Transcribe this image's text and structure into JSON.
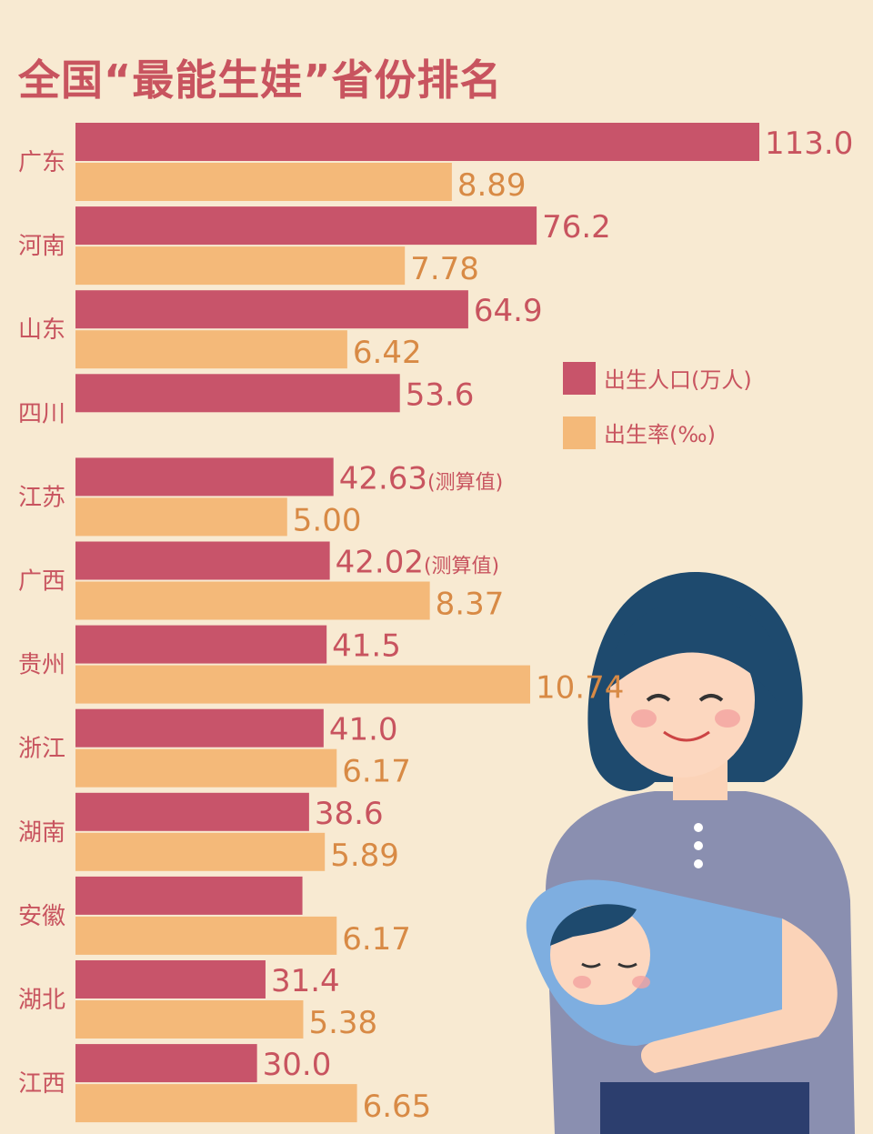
{
  "title": "全国“最能生娃”省份排名",
  "colors": {
    "background": "#f8ead2",
    "births": "#c8546a",
    "rate": "#f4b979",
    "label": "#c8545f",
    "rate_label": "#d88a45"
  },
  "legend": [
    {
      "label": "出生人口(万人)",
      "color": "#c8546a"
    },
    {
      "label": "出生率(‰)",
      "color": "#f4b979"
    }
  ],
  "chart_data": {
    "type": "bar",
    "orientation": "horizontal",
    "categories": [
      "广东",
      "河南",
      "山东",
      "四川",
      "江苏",
      "广西",
      "贵州",
      "浙江",
      "湖南",
      "安徽",
      "湖北",
      "江西"
    ],
    "series": [
      {
        "name": "出生人口(万人)",
        "values": [
          113.0,
          76.2,
          64.9,
          53.6,
          42.63,
          42.02,
          41.5,
          41.0,
          38.6,
          37.5,
          31.4,
          30.0
        ],
        "labels": [
          "113.0",
          "76.2",
          "64.9",
          "53.6",
          "42.63",
          "42.02",
          "41.5",
          "41.0",
          "38.6",
          "",
          "31.4",
          "30.0"
        ],
        "notes": [
          "",
          "",
          "",
          "",
          "(测算值)",
          "(测算值)",
          "",
          "",
          "",
          "",
          "",
          ""
        ]
      },
      {
        "name": "出生率(‰)",
        "values": [
          8.89,
          7.78,
          6.42,
          null,
          5.0,
          8.37,
          10.74,
          6.17,
          5.89,
          6.17,
          5.38,
          6.65
        ],
        "labels": [
          "8.89",
          "7.78",
          "6.42",
          "",
          "5.00",
          "8.37",
          "10.74",
          "6.17",
          "5.89",
          "6.17",
          "5.38",
          "6.65"
        ]
      }
    ],
    "legend_position": "right",
    "grid": false
  }
}
